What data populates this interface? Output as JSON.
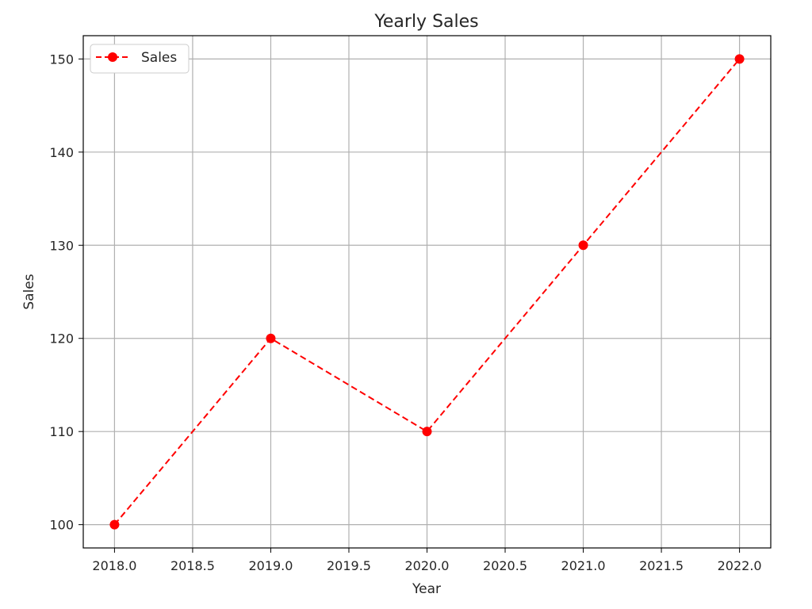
{
  "chart_data": {
    "type": "line",
    "title": "Yearly Sales",
    "xlabel": "Year",
    "ylabel": "Sales",
    "x": [
      2018,
      2019,
      2020,
      2021,
      2022
    ],
    "series": [
      {
        "name": "Sales",
        "values": [
          100,
          120,
          110,
          130,
          150
        ]
      }
    ],
    "xlim": [
      2017.8,
      2022.2
    ],
    "ylim": [
      97.5,
      152.5
    ],
    "xticks": [
      2018.0,
      2018.5,
      2019.0,
      2019.5,
      2020.0,
      2020.5,
      2021.0,
      2021.5,
      2022.0
    ],
    "xtick_labels": [
      "2018.0",
      "2018.5",
      "2019.0",
      "2019.5",
      "2020.0",
      "2020.5",
      "2021.0",
      "2021.5",
      "2022.0"
    ],
    "yticks": [
      100,
      110,
      120,
      130,
      140,
      150
    ],
    "ytick_labels": [
      "100",
      "110",
      "120",
      "130",
      "140",
      "150"
    ],
    "grid": true,
    "legend_position": "top-left",
    "line_style": "dashed",
    "marker": "circle",
    "colors": {
      "series": "#ff0000",
      "grid": "#b0b0b0",
      "axes": "#000000"
    }
  }
}
